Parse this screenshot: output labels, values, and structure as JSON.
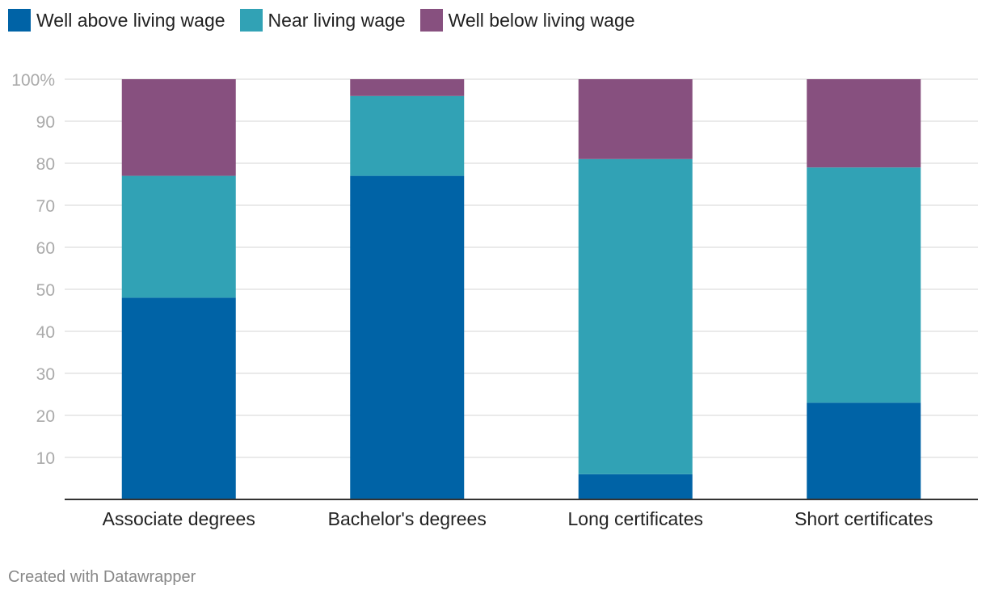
{
  "legend": [
    {
      "label": "Well above living wage",
      "color": "#0063a6"
    },
    {
      "label": "Near living wage",
      "color": "#31a2b5"
    },
    {
      "label": "Well below living wage",
      "color": "#87507f"
    }
  ],
  "footer": "Created with Datawrapper",
  "chart_data": {
    "type": "bar",
    "stacked": true,
    "categories": [
      "Associate degrees",
      "Bachelor's degrees",
      "Long certificates",
      "Short certificates"
    ],
    "series": [
      {
        "name": "Well above living wage",
        "color": "#0063a6",
        "values": [
          48,
          77,
          6,
          23
        ]
      },
      {
        "name": "Near living wage",
        "color": "#31a2b5",
        "values": [
          29,
          19,
          75,
          56
        ]
      },
      {
        "name": "Well below living wage",
        "color": "#87507f",
        "values": [
          23,
          4,
          19,
          21
        ]
      }
    ],
    "yticks": [
      "10",
      "20",
      "30",
      "40",
      "50",
      "60",
      "70",
      "80",
      "90",
      "100%"
    ],
    "ylim": [
      0,
      100
    ],
    "grid": true,
    "legend_position": "top-left",
    "title": "",
    "xlabel": "",
    "ylabel": ""
  }
}
